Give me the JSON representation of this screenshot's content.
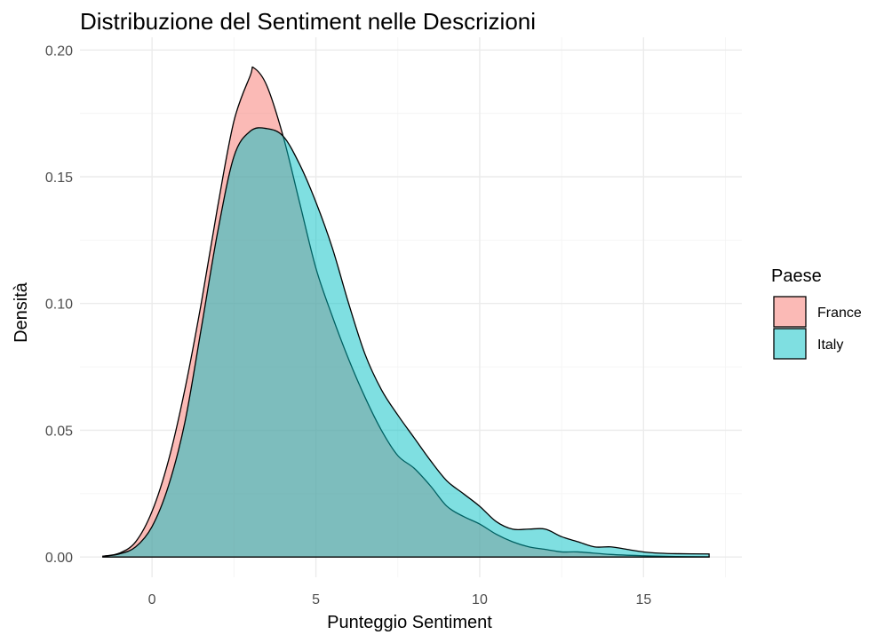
{
  "chart_data": {
    "type": "area",
    "title": "Distribuzione del Sentiment nelle Descrizioni",
    "xlabel": "Punteggio Sentiment",
    "ylabel": "Densità",
    "xlim": [
      -2.2,
      18.0
    ],
    "ylim": [
      -0.008,
      0.205
    ],
    "x_ticks": [
      0,
      5,
      10,
      15
    ],
    "x_tick_labels": [
      "0",
      "5",
      "10",
      "15"
    ],
    "y_ticks": [
      0.0,
      0.05,
      0.1,
      0.15,
      0.2
    ],
    "y_tick_labels": [
      "0.00",
      "0.05",
      "0.10",
      "0.15",
      "0.20"
    ],
    "grid": true,
    "legend": {
      "title": "Paese",
      "position": "right"
    },
    "series": [
      {
        "name": "France",
        "color": "#F8766D",
        "opacity": 0.5,
        "x": [
          -1.5,
          -1.0,
          -0.5,
          0.0,
          0.5,
          1.0,
          1.5,
          2.0,
          2.5,
          3.0,
          3.1,
          3.5,
          4.0,
          4.5,
          5.0,
          5.5,
          6.0,
          6.5,
          7.0,
          7.5,
          8.0,
          8.5,
          9.0,
          9.5,
          10.0,
          10.5,
          11.0,
          11.5,
          12.0,
          12.5,
          13.0,
          14.0,
          15.0,
          16.0,
          17.0
        ],
        "y": [
          0.0003,
          0.0015,
          0.006,
          0.018,
          0.038,
          0.066,
          0.1,
          0.138,
          0.172,
          0.19,
          0.193,
          0.186,
          0.166,
          0.14,
          0.114,
          0.095,
          0.078,
          0.063,
          0.05,
          0.04,
          0.035,
          0.028,
          0.02,
          0.016,
          0.013,
          0.009,
          0.006,
          0.004,
          0.003,
          0.002,
          0.002,
          0.001,
          0.0005,
          0.0002,
          0.0001
        ]
      },
      {
        "name": "Italy",
        "color": "#00BFC4",
        "opacity": 0.5,
        "x": [
          -1.5,
          -1.0,
          -0.5,
          0.0,
          0.5,
          1.0,
          1.5,
          2.0,
          2.5,
          3.0,
          3.5,
          4.0,
          4.5,
          5.0,
          5.5,
          6.0,
          6.5,
          7.0,
          7.5,
          8.0,
          8.5,
          9.0,
          9.5,
          10.0,
          10.5,
          11.0,
          11.5,
          12.0,
          12.5,
          13.0,
          13.5,
          14.0,
          14.5,
          15.0,
          15.5,
          16.0,
          17.0
        ],
        "y": [
          0.0003,
          0.0012,
          0.004,
          0.012,
          0.028,
          0.053,
          0.09,
          0.128,
          0.158,
          0.168,
          0.169,
          0.166,
          0.155,
          0.14,
          0.122,
          0.1,
          0.08,
          0.066,
          0.056,
          0.047,
          0.038,
          0.03,
          0.025,
          0.02,
          0.014,
          0.011,
          0.011,
          0.011,
          0.008,
          0.006,
          0.004,
          0.004,
          0.003,
          0.002,
          0.0015,
          0.0013,
          0.0012
        ]
      }
    ]
  }
}
